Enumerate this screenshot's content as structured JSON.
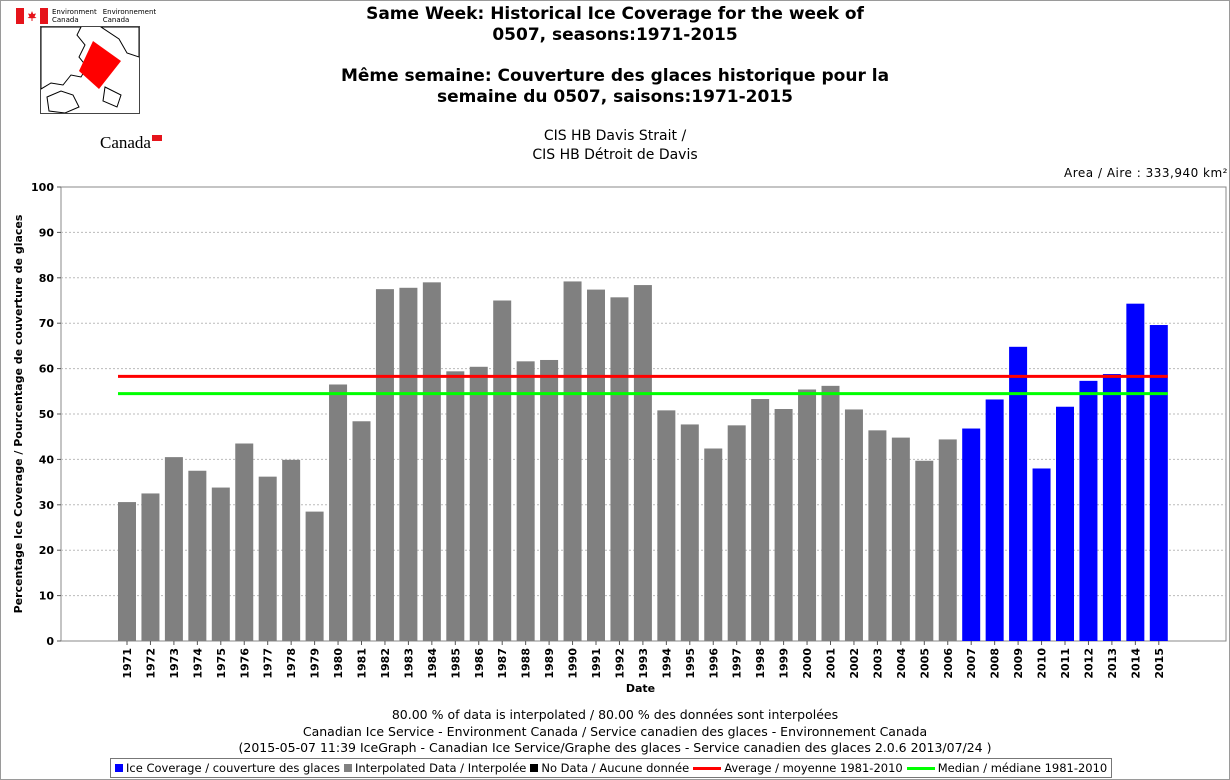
{
  "header": {
    "dept_en": "Environment\nCanada",
    "dept_fr": "Environnement\nCanada",
    "wordmark": "Canada",
    "title_en_1": "Same Week: Historical Ice Coverage for the week of",
    "title_en_2": "0507, seasons:1971-2015",
    "title_fr_1": "Même semaine: Couverture des glaces historique pour la",
    "title_fr_2": "semaine du 0507, saisons:1971-2015",
    "region_1": "CIS HB Davis Strait /",
    "region_2": "CIS HB Détroit de Davis",
    "area": "Area / Aire : 333,940 km²"
  },
  "footer": {
    "line1": "80.00 % of data is interpolated / 80.00 % des données sont interpolées",
    "line2": "Canadian Ice Service - Environment Canada / Service canadien des glaces - Environnement Canada",
    "line3": "(2015-05-07 11:39 IceGraph - Canadian Ice Service/Graphe des glaces - Service canadien des glaces 2.0.6 2013/07/24 )"
  },
  "legend": [
    {
      "label": "Ice Coverage / couverture des glaces",
      "color": "#0000ff",
      "kind": "box"
    },
    {
      "label": "Interpolated Data / Interpolée",
      "color": "#808080",
      "kind": "box"
    },
    {
      "label": "No Data / Aucune donnée",
      "color": "#000000",
      "kind": "box"
    },
    {
      "label": "Average / moyenne 1981-2010",
      "color": "#ff0000",
      "kind": "line"
    },
    {
      "label": "Median / médiane 1981-2010",
      "color": "#00ff00",
      "kind": "line"
    }
  ],
  "chart_data": {
    "type": "bar",
    "xlabel": "Date",
    "ylabel": "Percentage Ice Coverage / Pourcentage de couverture de glaces",
    "ylim": [
      0,
      100
    ],
    "yticks": [
      0,
      10,
      20,
      30,
      40,
      50,
      60,
      70,
      80,
      90,
      100
    ],
    "grid": true,
    "categories": [
      "1971",
      "1972",
      "1973",
      "1974",
      "1975",
      "1976",
      "1977",
      "1978",
      "1979",
      "1980",
      "1981",
      "1982",
      "1983",
      "1984",
      "1985",
      "1986",
      "1987",
      "1988",
      "1989",
      "1990",
      "1991",
      "1992",
      "1993",
      "1994",
      "1995",
      "1996",
      "1997",
      "1998",
      "1999",
      "2000",
      "2001",
      "2002",
      "2003",
      "2004",
      "2005",
      "2006",
      "2007",
      "2008",
      "2009",
      "2010",
      "2011",
      "2012",
      "2013",
      "2014",
      "2015"
    ],
    "values": [
      30.6,
      32.5,
      40.5,
      37.5,
      33.8,
      43.5,
      36.2,
      39.9,
      28.5,
      56.5,
      48.4,
      77.5,
      77.8,
      79.0,
      59.4,
      60.4,
      75.0,
      61.6,
      61.9,
      79.2,
      77.4,
      75.7,
      78.4,
      50.8,
      47.7,
      42.4,
      47.5,
      53.3,
      51.1,
      55.4,
      56.2,
      51.0,
      46.4,
      44.8,
      39.7,
      44.4,
      46.8,
      53.2,
      64.8,
      38.0,
      51.6,
      57.3,
      58.8,
      74.3,
      69.6
    ],
    "series_type": [
      "interpolated",
      "interpolated",
      "interpolated",
      "interpolated",
      "interpolated",
      "interpolated",
      "interpolated",
      "interpolated",
      "interpolated",
      "interpolated",
      "interpolated",
      "interpolated",
      "interpolated",
      "interpolated",
      "interpolated",
      "interpolated",
      "interpolated",
      "interpolated",
      "interpolated",
      "interpolated",
      "interpolated",
      "interpolated",
      "interpolated",
      "interpolated",
      "interpolated",
      "interpolated",
      "interpolated",
      "interpolated",
      "interpolated",
      "interpolated",
      "interpolated",
      "interpolated",
      "interpolated",
      "interpolated",
      "interpolated",
      "interpolated",
      "ice",
      "ice",
      "ice",
      "ice",
      "ice",
      "ice",
      "ice",
      "ice",
      "ice"
    ],
    "colors": {
      "ice": "#0000ff",
      "interpolated": "#808080",
      "average": "#ff0000",
      "median": "#00ff00"
    },
    "average": 58.3,
    "median": 54.5
  }
}
